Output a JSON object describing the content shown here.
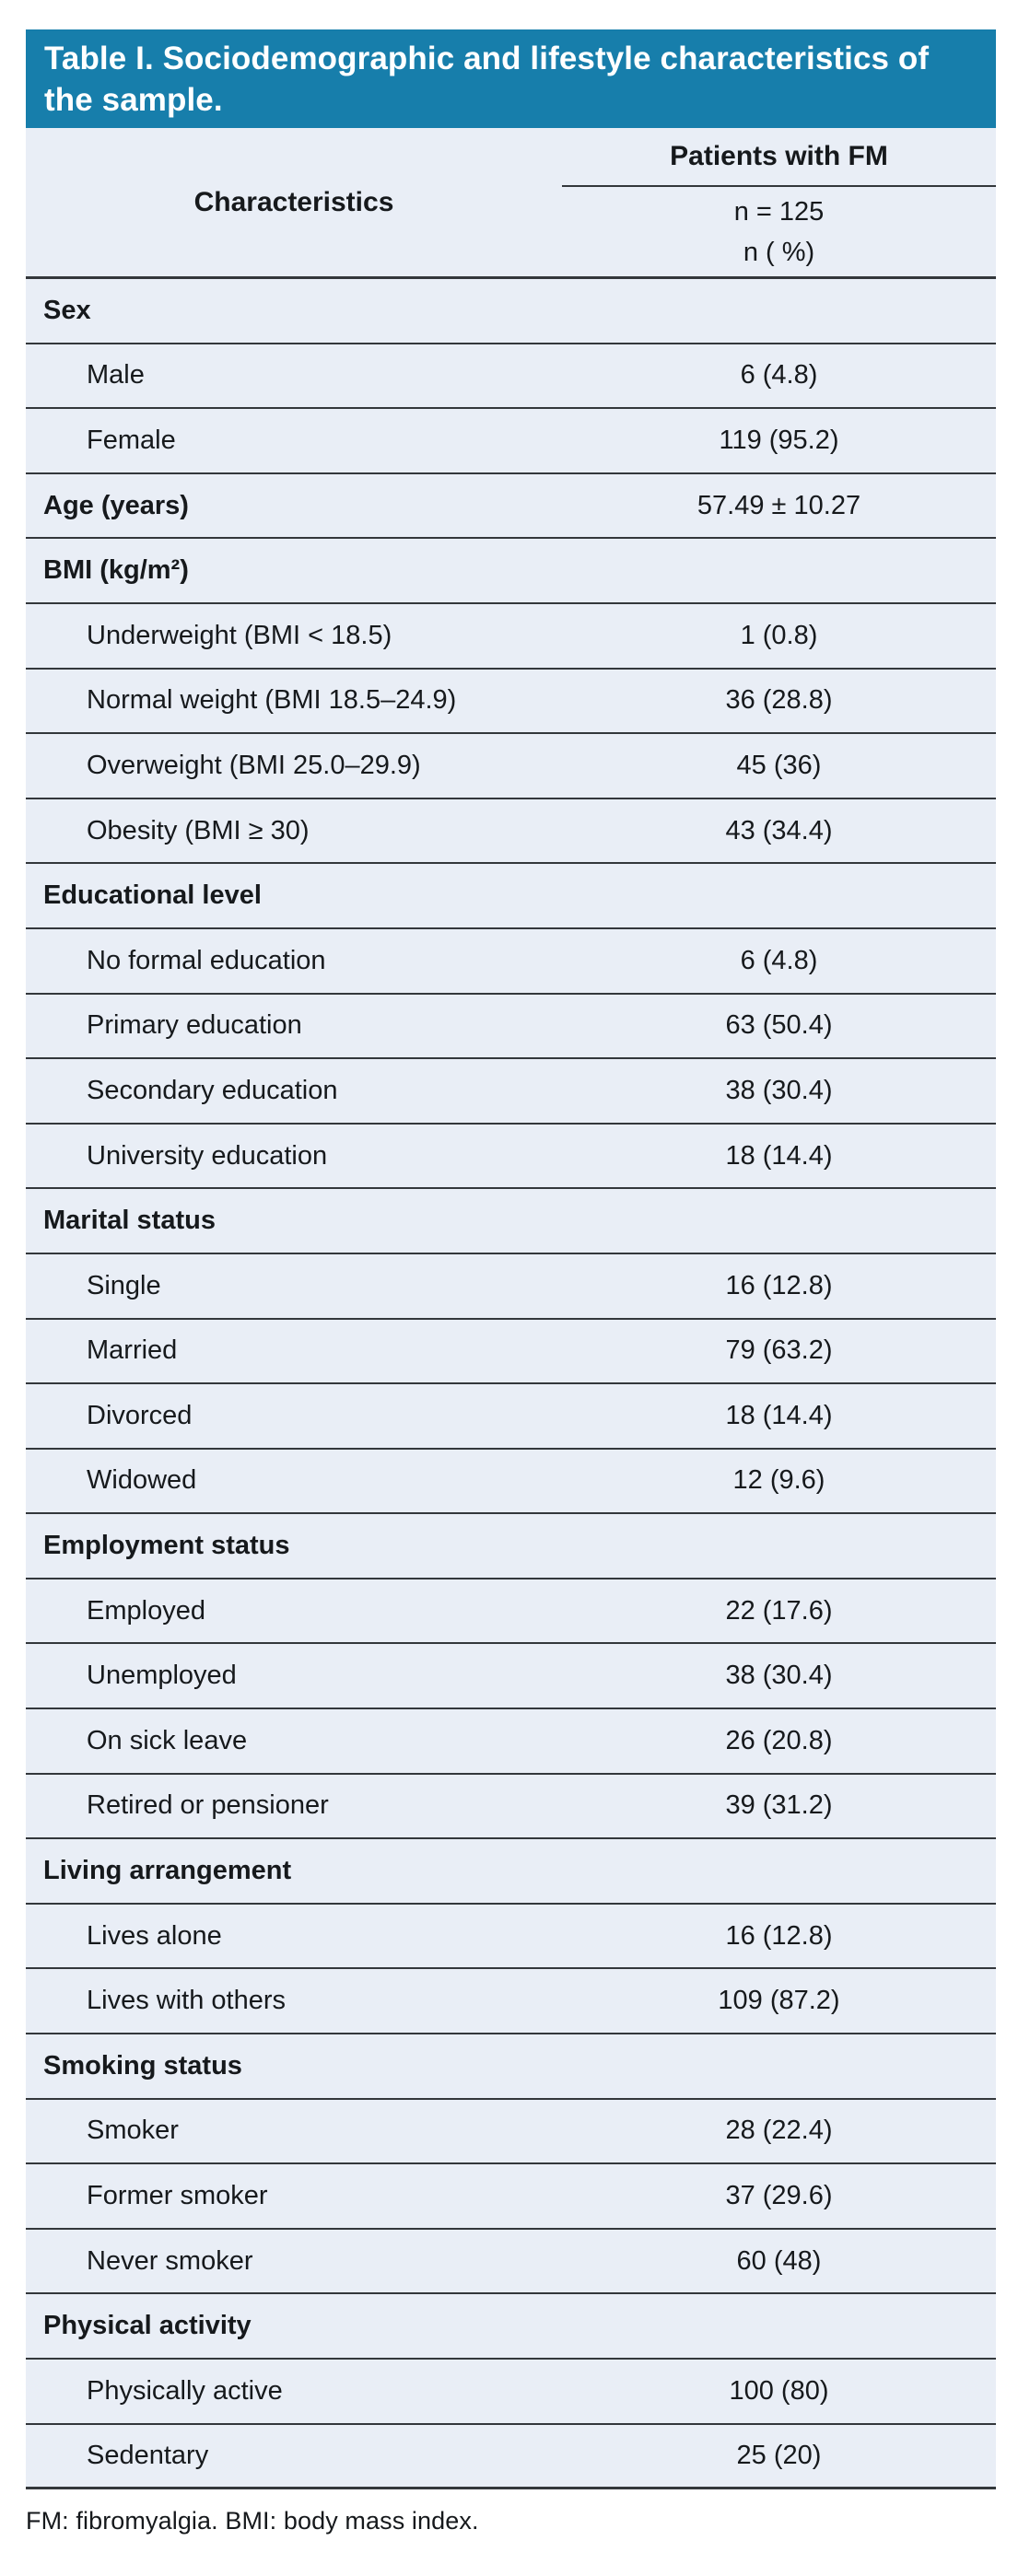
{
  "title": "Table I. Sociodemographic and lifestyle characteristics of\nthe sample.",
  "header": {
    "characteristics_label": "Characteristics",
    "group_label": "Patients with FM",
    "n_line1": "n = 125",
    "n_line2": "n ( %)"
  },
  "rows": [
    {
      "type": "section",
      "label": "Sex",
      "value": ""
    },
    {
      "type": "item",
      "label": "Male",
      "value": "6 (4.8)"
    },
    {
      "type": "item",
      "label": "Female",
      "value": "119 (95.2)"
    },
    {
      "type": "section",
      "label": "Age (years)",
      "value": "57.49 ± 10.27"
    },
    {
      "type": "section",
      "label": "BMI (kg/m²)",
      "value": ""
    },
    {
      "type": "item",
      "label": "Underweight (BMI < 18.5)",
      "value": "1 (0.8)"
    },
    {
      "type": "item",
      "label": "Normal weight (BMI 18.5–24.9)",
      "value": "36 (28.8)"
    },
    {
      "type": "item",
      "label": "Overweight (BMI 25.0–29.9)",
      "value": "45 (36)"
    },
    {
      "type": "item",
      "label": "Obesity (BMI ≥ 30)",
      "value": "43 (34.4)"
    },
    {
      "type": "section",
      "label": "Educational level",
      "value": ""
    },
    {
      "type": "item",
      "label": "No formal education",
      "value": "6 (4.8)"
    },
    {
      "type": "item",
      "label": "Primary education",
      "value": "63 (50.4)"
    },
    {
      "type": "item",
      "label": "Secondary education",
      "value": "38 (30.4)"
    },
    {
      "type": "item",
      "label": "University education",
      "value": "18 (14.4)"
    },
    {
      "type": "section",
      "label": "Marital status",
      "value": ""
    },
    {
      "type": "item",
      "label": "Single",
      "value": "16 (12.8)"
    },
    {
      "type": "item",
      "label": "Married",
      "value": "79 (63.2)"
    },
    {
      "type": "item",
      "label": "Divorced",
      "value": "18 (14.4)"
    },
    {
      "type": "item",
      "label": "Widowed",
      "value": "12 (9.6)"
    },
    {
      "type": "section",
      "label": "Employment status",
      "value": ""
    },
    {
      "type": "item",
      "label": "Employed",
      "value": "22 (17.6)"
    },
    {
      "type": "item",
      "label": "Unemployed",
      "value": "38 (30.4)"
    },
    {
      "type": "item",
      "label": "On sick leave",
      "value": "26 (20.8)"
    },
    {
      "type": "item",
      "label": "Retired or pensioner",
      "value": "39 (31.2)"
    },
    {
      "type": "section",
      "label": "Living arrangement",
      "value": ""
    },
    {
      "type": "item",
      "label": "Lives alone",
      "value": "16 (12.8)"
    },
    {
      "type": "item",
      "label": "Lives with others",
      "value": "109 (87.2)"
    },
    {
      "type": "section",
      "label": "Smoking status",
      "value": ""
    },
    {
      "type": "item",
      "label": "Smoker",
      "value": "28 (22.4)"
    },
    {
      "type": "item",
      "label": "Former smoker",
      "value": "37 (29.6)"
    },
    {
      "type": "item",
      "label": "Never smoker",
      "value": "60 (48)"
    },
    {
      "type": "section",
      "label": "Physical activity",
      "value": ""
    },
    {
      "type": "item",
      "label": "Physically active",
      "value": "100 (80)"
    },
    {
      "type": "item",
      "label": "Sedentary",
      "value": "25 (20)"
    }
  ],
  "footnote": "FM: fibromyalgia. BMI: body mass index.",
  "colors": {
    "accent": "#177eab",
    "row_bg": "#e9eef6",
    "line": "#33373b",
    "text": "#16191c",
    "title_text": "#ffffff",
    "page_bg": "#ffffff"
  }
}
